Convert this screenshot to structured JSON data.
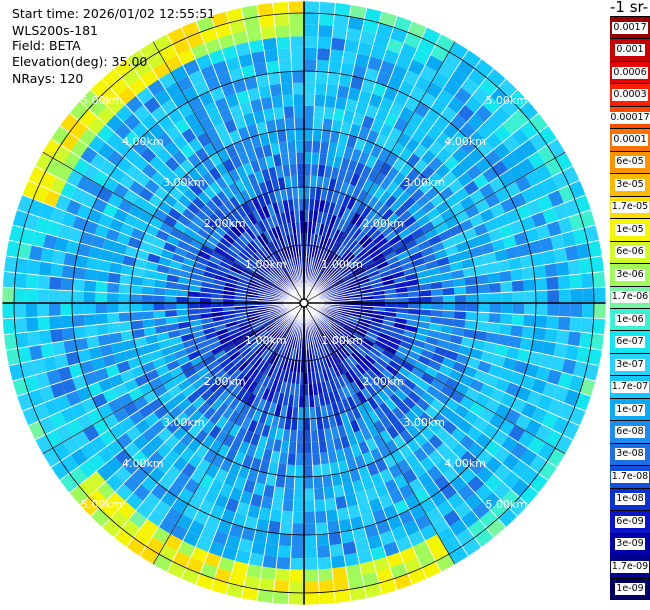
{
  "info": {
    "start_time": "Start time: 2026/01/02 12:55:51",
    "instrument": "WLS200s-181",
    "field": "Field: BETA",
    "elevation": "Elevation(deg): 35.00",
    "nrays": "NRays: 120"
  },
  "colorbar": {
    "units_label": "-1 sr-",
    "ticks": [
      "0.0017",
      "0.001",
      "0.0006",
      "0.0003",
      "0.00017",
      "0.0001",
      "6e-05",
      "3e-05",
      "1.7e-05",
      "1e-05",
      "6e-06",
      "3e-06",
      "1.7e-06",
      "1e-06",
      "6e-07",
      "3e-07",
      "1.7e-07",
      "1e-07",
      "6e-08",
      "3e-08",
      "1.7e-08",
      "1e-08",
      "6e-09",
      "3e-09",
      "1.7e-09",
      "1e-09"
    ],
    "colors": [
      "#9b0000",
      "#c80000",
      "#e60000",
      "#ff2000",
      "#ff4a00",
      "#ff7000",
      "#ff9400",
      "#ffb800",
      "#ffdc00",
      "#f5f500",
      "#d2fa28",
      "#a0fa5a",
      "#78f5a0",
      "#3cf0d2",
      "#14e6f0",
      "#28d2ff",
      "#14c8ff",
      "#0aaaf5",
      "#1e8cf0",
      "#1e6ee6",
      "#1450dc",
      "#0a32d2",
      "#0a14c8",
      "#0000aa",
      "#00008c",
      "#000064"
    ]
  },
  "chart_data": {
    "type": "heatmap",
    "projection": "polar-ppi",
    "field": "BETA",
    "elevation_deg": 35.0,
    "n_rays": 120,
    "ray_step_deg": 3.0,
    "range_rings_km": [
      1,
      2,
      3,
      4,
      5
    ],
    "max_range_km": 5.2,
    "ring_labels": [
      "1.00km",
      "2.00km",
      "3.00km",
      "4.00km",
      "5.00km"
    ],
    "range_gates": [
      0.0,
      0.2,
      0.4,
      0.6,
      0.8,
      1.0,
      1.2,
      1.4,
      1.6,
      1.8,
      2.0,
      2.2,
      2.4,
      2.6,
      2.8,
      3.0,
      3.2,
      3.4,
      3.6,
      3.8,
      4.0,
      4.2,
      4.4,
      4.6,
      4.8,
      5.0
    ],
    "mean_log10_beta_by_range": [
      -8.5,
      -8.5,
      -8.4,
      -8.3,
      -8.2,
      -8.1,
      -8.0,
      -7.9,
      -7.8,
      -7.6,
      -7.4,
      -7.3,
      -7.2,
      -7.1,
      -7.0,
      -6.95,
      -6.9,
      -6.85,
      -6.8,
      -6.8,
      -6.85,
      -6.9,
      -6.8,
      -6.6,
      -6.4,
      -6.3
    ],
    "bright_rim_log10_beta": -5.2,
    "bright_rim_range_km": [
      4.5,
      5.2
    ],
    "colorscale": "log10",
    "vmin": 1e-09,
    "vmax": 0.0017
  }
}
